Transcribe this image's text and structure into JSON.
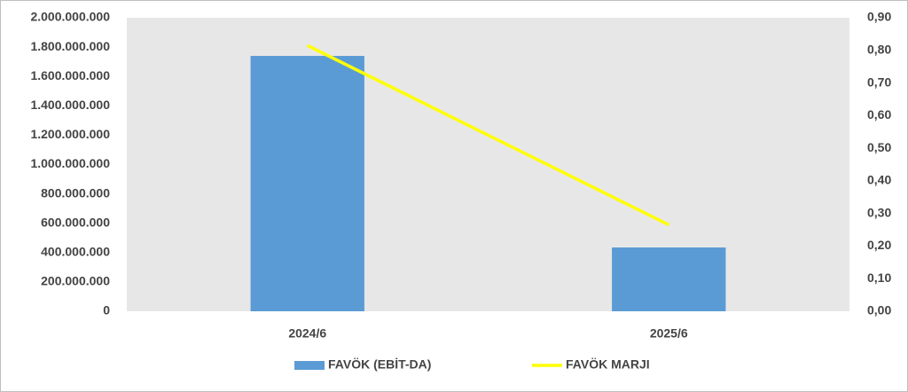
{
  "chart_data": {
    "type": "bar-line",
    "categories": [
      "2024/6",
      "2025/6"
    ],
    "series": [
      {
        "name": "FAVÖK (EBİT-DA)",
        "type": "bar",
        "color": "#5b9bd5",
        "values": [
          1740000000,
          435000000
        ]
      },
      {
        "name": "FAVÖK MARJI",
        "type": "line",
        "axis": "y2",
        "color": "#ffff00",
        "values": [
          0.815,
          0.265
        ]
      }
    ],
    "ylim": [
      0,
      2000000000
    ],
    "yticks": [
      0,
      {
        "value": 200000000,
        "label": "200.000.000"
      },
      {
        "value": 400000000,
        "label": "400.000.000"
      },
      {
        "value": 600000000,
        "label": "600.000.000"
      },
      {
        "value": 800000000,
        "label": "800.000.000"
      },
      {
        "value": 1000000000,
        "label": "1.000.000.000"
      },
      {
        "value": 1200000000,
        "label": "1.200.000.000"
      },
      {
        "value": 1400000000,
        "label": "1.400.000.000"
      },
      {
        "value": 1600000000,
        "label": "1.600.000.000"
      },
      {
        "value": 1800000000,
        "label": "1.800.000.000"
      },
      {
        "value": 2000000000,
        "label": "2.000.000.000"
      }
    ],
    "y2lim": [
      0,
      0.9
    ],
    "y2ticks": [
      {
        "value": 0,
        "label": "0,00"
      },
      {
        "value": 0.1,
        "label": "0,10"
      },
      {
        "value": 0.2,
        "label": "0,20"
      },
      {
        "value": 0.3,
        "label": "0,30"
      },
      {
        "value": 0.4,
        "label": "0,40"
      },
      {
        "value": 0.5,
        "label": "0,50"
      },
      {
        "value": 0.6,
        "label": "0,60"
      },
      {
        "value": 0.7,
        "label": "0,70"
      },
      {
        "value": 0.8,
        "label": "0,80"
      },
      {
        "value": 0.9,
        "label": "0,90"
      }
    ],
    "grid": false,
    "legend": "bottom"
  }
}
